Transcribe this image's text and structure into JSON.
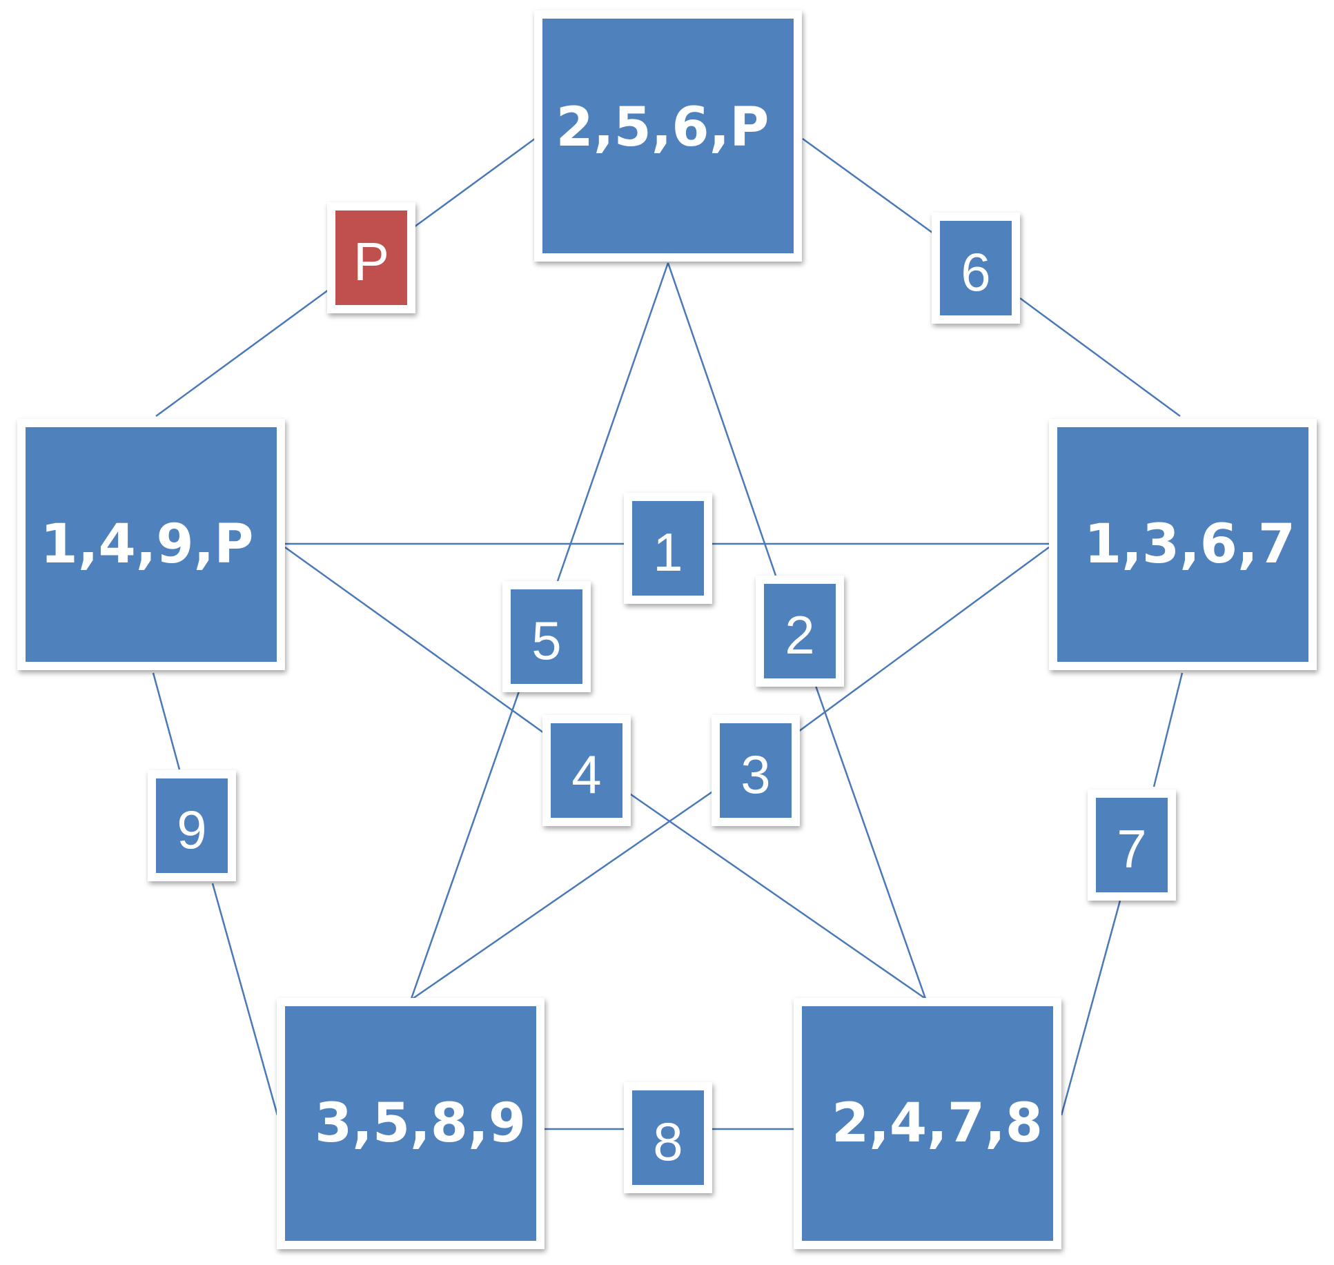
{
  "colors": {
    "node_fill": "#4f81bd",
    "highlight_fill": "#c0504d",
    "edge": "#4a78b8",
    "border": "#ffffff"
  },
  "nodes": {
    "top": {
      "label": "2,5,6,P"
    },
    "left": {
      "label": "1,4,9,P"
    },
    "right": {
      "label": "1,3,6,7"
    },
    "bottom_left": {
      "label": "3,5,8,9"
    },
    "bottom_right": {
      "label": "2,4,7,8"
    }
  },
  "edge_labels": {
    "p": "P",
    "one": "1",
    "two": "2",
    "three": "3",
    "four": "4",
    "five": "5",
    "six": "6",
    "seven": "7",
    "eight": "8",
    "nine": "9"
  }
}
